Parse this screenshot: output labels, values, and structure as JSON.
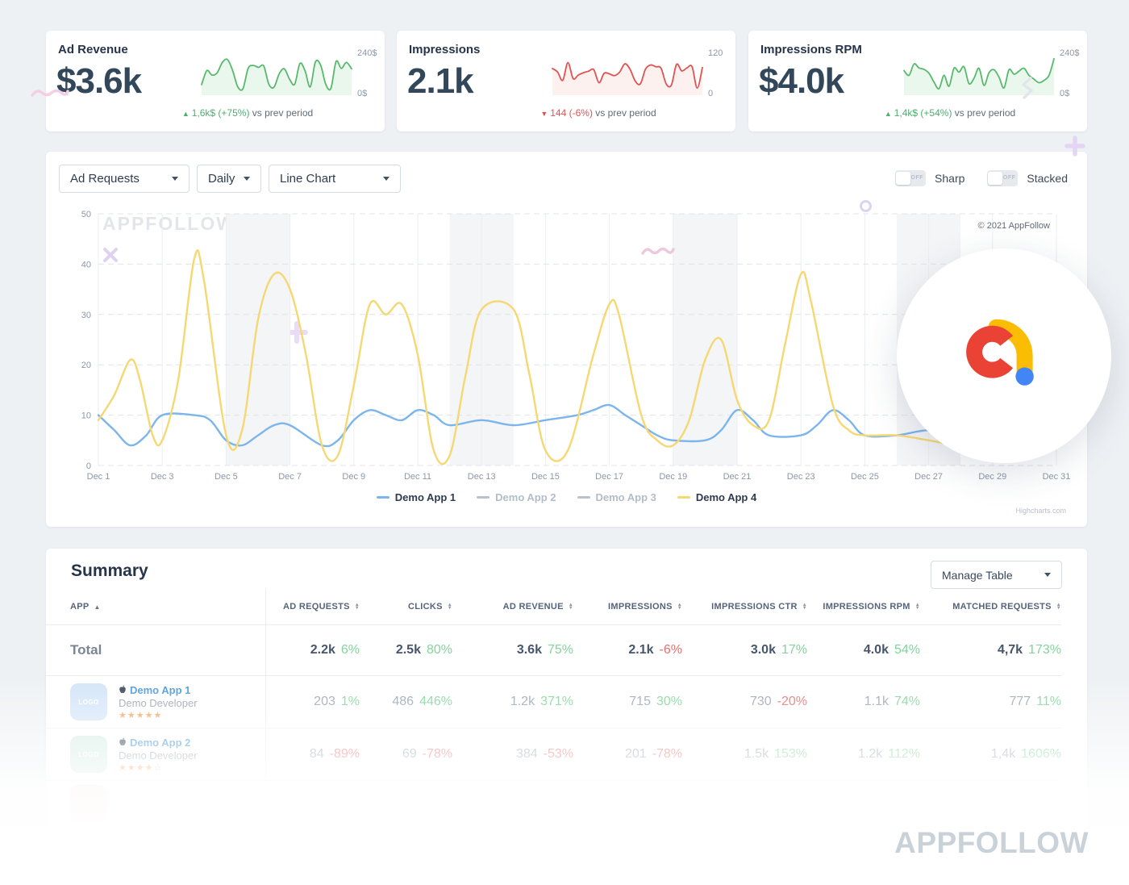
{
  "kpi_cards": [
    {
      "title": "Ad Revenue",
      "value": "$3.6k",
      "axis_top": "240$",
      "axis_bottom": "0$",
      "trend": "up",
      "arrow": "▲",
      "change": "1,6k$ (+75%)",
      "suffix": "vs prev period"
    },
    {
      "title": "Impressions",
      "value": "2.1k",
      "axis_top": "120",
      "axis_bottom": "0",
      "trend": "down",
      "arrow": "▼",
      "change": "144 (-6%)",
      "suffix": "vs prev period"
    },
    {
      "title": "Impressions RPM",
      "value": "$4.0k",
      "axis_top": "240$",
      "axis_bottom": "0$",
      "trend": "up",
      "arrow": "▲",
      "change": "1,4k$ (+54%)",
      "suffix": "vs prev period"
    }
  ],
  "controls": {
    "metric_select": "Ad Requests",
    "period_select": "Daily",
    "type_select": "Line Chart",
    "toggles": [
      {
        "label": "Sharp",
        "state": "OFF"
      },
      {
        "label": "Stacked",
        "state": "OFF"
      }
    ]
  },
  "chart_meta": {
    "watermark": "APPFOLLOW",
    "copyright": "© 2021 AppFollow",
    "credits": "Highcharts.com"
  },
  "chart_data": {
    "type": "line",
    "x_axis": {
      "range": [
        1,
        31
      ],
      "tick_days": [
        1,
        3,
        5,
        7,
        9,
        11,
        13,
        15,
        17,
        19,
        21,
        23,
        25,
        27,
        29,
        31
      ],
      "ticks": [
        "Dec 1",
        "Dec 3",
        "Dec 5",
        "Dec 7",
        "Dec 9",
        "Dec 11",
        "Dec 13",
        "Dec 15",
        "Dec 17",
        "Dec 19",
        "Dec 21",
        "Dec 23",
        "Dec 25",
        "Dec 27",
        "Dec 29",
        "Dec 31"
      ]
    },
    "y_axis": {
      "range": [
        0,
        50
      ],
      "ticks": [
        0,
        10,
        20,
        30,
        40,
        50
      ]
    },
    "plot_bands": [
      [
        5,
        7
      ],
      [
        12,
        14
      ],
      [
        19,
        21
      ],
      [
        26,
        28
      ]
    ],
    "grid": "dashed-horizontal",
    "legend_position": "bottom",
    "series": [
      {
        "name": "Demo App 1",
        "color": "#7cb5ec",
        "visible": true,
        "points": [
          [
            1,
            10
          ],
          [
            1.5,
            7
          ],
          [
            2,
            4
          ],
          [
            2.5,
            6
          ],
          [
            3,
            10
          ],
          [
            4,
            10
          ],
          [
            4.5,
            9
          ],
          [
            5,
            5
          ],
          [
            5.5,
            4
          ],
          [
            6,
            6
          ],
          [
            6.5,
            8
          ],
          [
            7,
            8
          ],
          [
            8,
            4
          ],
          [
            8.5,
            5
          ],
          [
            9,
            9
          ],
          [
            9.5,
            11
          ],
          [
            10,
            10
          ],
          [
            10.5,
            9
          ],
          [
            11,
            11
          ],
          [
            11.5,
            10
          ],
          [
            12,
            8
          ],
          [
            13,
            9
          ],
          [
            14,
            8
          ],
          [
            15,
            9
          ],
          [
            16,
            10
          ],
          [
            16.5,
            11
          ],
          [
            17,
            12
          ],
          [
            17.5,
            10
          ],
          [
            18,
            8
          ],
          [
            18.5,
            6
          ],
          [
            19,
            5
          ],
          [
            20,
            5
          ],
          [
            20.5,
            7
          ],
          [
            21,
            11
          ],
          [
            21.5,
            9
          ],
          [
            22,
            6
          ],
          [
            23,
            6
          ],
          [
            23.5,
            8
          ],
          [
            24,
            11
          ],
          [
            24.5,
            9
          ],
          [
            25,
            6
          ],
          [
            26,
            6
          ],
          [
            27,
            7
          ],
          [
            28,
            6
          ],
          [
            29,
            5
          ],
          [
            30,
            5
          ],
          [
            31,
            5
          ]
        ]
      },
      {
        "name": "Demo App 2",
        "color": "#b9c2ca",
        "visible": false,
        "points": []
      },
      {
        "name": "Demo App 3",
        "color": "#b9c2ca",
        "visible": false,
        "points": []
      },
      {
        "name": "Demo App 4",
        "color": "#f6d873",
        "visible": true,
        "points": [
          [
            1,
            9
          ],
          [
            1.5,
            14
          ],
          [
            2,
            21
          ],
          [
            2.3,
            17
          ],
          [
            2.7,
            6
          ],
          [
            3,
            5
          ],
          [
            3.5,
            17
          ],
          [
            4,
            41
          ],
          [
            4.3,
            37
          ],
          [
            5,
            6
          ],
          [
            5.5,
            7
          ],
          [
            6,
            29
          ],
          [
            6.5,
            38
          ],
          [
            7,
            35
          ],
          [
            7.5,
            22
          ],
          [
            8,
            4
          ],
          [
            8.5,
            2
          ],
          [
            9,
            16
          ],
          [
            9.5,
            32
          ],
          [
            10,
            30
          ],
          [
            10.5,
            32
          ],
          [
            11,
            22
          ],
          [
            11.5,
            3
          ],
          [
            12,
            2
          ],
          [
            12.5,
            18
          ],
          [
            13,
            31
          ],
          [
            14,
            31
          ],
          [
            14.5,
            18
          ],
          [
            15,
            3
          ],
          [
            15.7,
            3
          ],
          [
            16.5,
            22
          ],
          [
            17,
            32
          ],
          [
            17.3,
            30
          ],
          [
            18,
            10
          ],
          [
            18.5,
            5
          ],
          [
            19,
            4
          ],
          [
            19.5,
            9
          ],
          [
            20,
            21
          ],
          [
            20.5,
            25
          ],
          [
            21,
            13
          ],
          [
            21.5,
            8
          ],
          [
            22,
            9
          ],
          [
            22.5,
            24
          ],
          [
            23,
            38
          ],
          [
            23.3,
            33
          ],
          [
            24,
            12
          ],
          [
            24.5,
            7
          ],
          [
            25,
            6
          ],
          [
            26,
            6
          ],
          [
            27,
            5
          ],
          [
            28,
            4
          ],
          [
            29,
            4.5
          ],
          [
            30,
            7
          ],
          [
            31,
            12
          ]
        ]
      }
    ],
    "sparklines": [
      {
        "metric": "Ad Revenue",
        "color": "#57b96c",
        "fill": "#e9f7ec",
        "range": [
          0,
          240
        ],
        "values": [
          55,
          150,
          120,
          135,
          205,
          225,
          150,
          40,
          28,
          165,
          185,
          172,
          182,
          58,
          38,
          128,
          162,
          92,
          58,
          198,
          148,
          40,
          208,
          188,
          58,
          30,
          212,
          165,
          205,
          162
        ]
      },
      {
        "metric": "Impressions",
        "color": "#e05252",
        "fill": "#fdf1f0",
        "range": [
          0,
          120
        ],
        "values": [
          82,
          70,
          42,
          102,
          48,
          60,
          68,
          73,
          78,
          34,
          66,
          64,
          58,
          70,
          98,
          80,
          40,
          30,
          80,
          94,
          88,
          83,
          30,
          26,
          96,
          74,
          84,
          88,
          16,
          85
        ]
      },
      {
        "metric": "Impressions RPM",
        "color": "#57b96c",
        "fill": "#e9f7ec",
        "range": [
          0,
          240
        ],
        "values": [
          150,
          118,
          195,
          168,
          158,
          132,
          72,
          28,
          118,
          44,
          166,
          140,
          176,
          62,
          98,
          166,
          50,
          136,
          156,
          106,
          33,
          156,
          126,
          146,
          166,
          118,
          92,
          68,
          84,
          118,
          230
        ]
      }
    ]
  },
  "summary": {
    "title": "Summary",
    "manage_table": "Manage Table",
    "columns": [
      "APP",
      "AD REQUESTS",
      "CLICKS",
      "AD REVENUE",
      "IMPRESSIONS",
      "IMPRESSIONS CTR",
      "IMPRESSIONS RPM",
      "MATCHED REQUESTS"
    ],
    "total": {
      "label": "Total",
      "cells": [
        [
          "2.2k",
          "6%"
        ],
        [
          "2.5k",
          "80%"
        ],
        [
          "3.6k",
          "75%"
        ],
        [
          "2.1k",
          "-6%"
        ],
        [
          "3.0k",
          "17%"
        ],
        [
          "4.0k",
          "54%"
        ],
        [
          "4,7k",
          "173%"
        ]
      ]
    },
    "rows": [
      {
        "name": "Demo App 1",
        "developer": "Demo Developer",
        "rating": "★★★★★",
        "logo_text": "LOGO",
        "cells": [
          [
            "203",
            "1%"
          ],
          [
            "486",
            "446%"
          ],
          [
            "1.2k",
            "371%"
          ],
          [
            "715",
            "30%"
          ],
          [
            "730",
            "-20%"
          ],
          [
            "1.1k",
            "74%"
          ],
          [
            "777",
            "11%"
          ]
        ]
      },
      {
        "name": "Demo App 2",
        "developer": "Demo Developer",
        "rating": "★★★★☆",
        "logo_text": "LOGO",
        "cells": [
          [
            "84",
            "-89%"
          ],
          [
            "69",
            "-78%"
          ],
          [
            "384",
            "-53%"
          ],
          [
            "201",
            "-78%"
          ],
          [
            "1.5k",
            "153%"
          ],
          [
            "1.2k",
            "112%"
          ],
          [
            "1,4k",
            "1606%"
          ]
        ]
      }
    ]
  },
  "page_watermark": "APPFOLLOW",
  "brand_colors": {
    "logo_red": "#EA4335",
    "logo_yellow": "#FBBC04",
    "logo_blue": "#4285F4"
  }
}
